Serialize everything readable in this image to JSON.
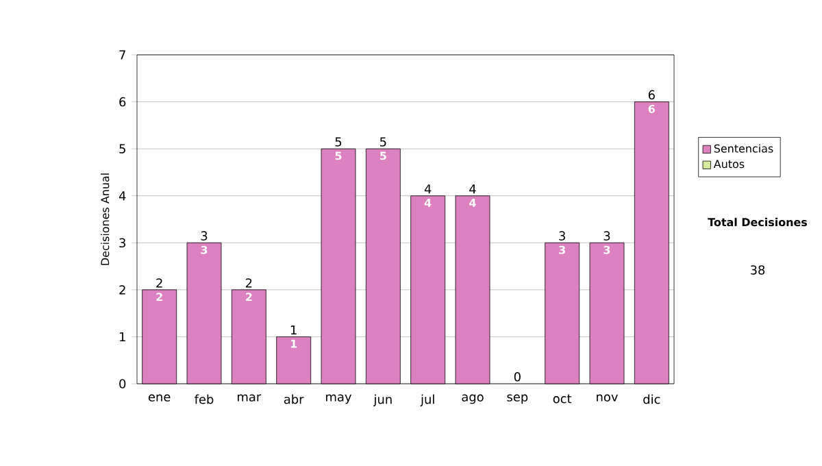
{
  "chart_data": {
    "type": "bar",
    "ylabel": "Decisiones Anual",
    "categories": [
      "ene",
      "feb",
      "mar",
      "abr",
      "may",
      "jun",
      "jul",
      "ago",
      "sep",
      "oct",
      "nov",
      "dic"
    ],
    "stacked": true,
    "series": [
      {
        "name": "Sentencias",
        "color": "#dd80c0",
        "values": [
          2,
          3,
          2,
          1,
          5,
          5,
          4,
          4,
          0,
          3,
          3,
          6
        ],
        "value_labels": [
          "2",
          "3",
          "2",
          "1",
          "5",
          "5",
          "4",
          "4",
          null,
          "3",
          "3",
          "6"
        ]
      },
      {
        "name": "Autos",
        "color": "#d8eca0",
        "values": [
          0,
          0,
          0,
          0,
          0,
          0,
          0,
          0,
          0,
          0,
          0,
          0
        ]
      }
    ],
    "totals": [
      "2",
      "3",
      "2",
      "1",
      "5",
      "5",
      "4",
      "4",
      "0",
      "3",
      "3",
      "6"
    ],
    "ylim": [
      0,
      7
    ],
    "yticks": [
      0,
      1,
      2,
      3,
      4,
      5,
      6,
      7
    ],
    "grid": "y",
    "legend": "right",
    "annotations": [
      "Total Decisiones",
      "38"
    ]
  }
}
